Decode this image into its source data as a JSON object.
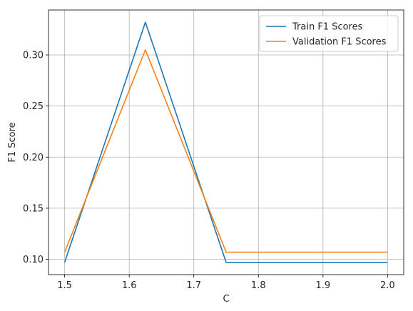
{
  "chart_data": {
    "type": "line",
    "title": "",
    "xlabel": "C",
    "ylabel": "F1 Score",
    "xlim": [
      1.475,
      2.025
    ],
    "ylim": [
      0.085,
      0.344
    ],
    "xticks": [
      1.5,
      1.6,
      1.7,
      1.8,
      1.9,
      2.0
    ],
    "xtick_labels": [
      "1.5",
      "1.6",
      "1.7",
      "1.8",
      "1.9",
      "2.0"
    ],
    "yticks": [
      0.1,
      0.15,
      0.2,
      0.25,
      0.3
    ],
    "ytick_labels": [
      "0.10",
      "0.15",
      "0.20",
      "0.25",
      "0.30"
    ],
    "grid": true,
    "legend_position": "top-right",
    "series": [
      {
        "name": "Train F1 Scores",
        "color": "#1f77b4",
        "x": [
          1.5,
          1.625,
          1.75,
          1.875,
          2.0
        ],
        "y": [
          0.097,
          0.332,
          0.097,
          0.097,
          0.097
        ]
      },
      {
        "name": "Validation F1 Scores",
        "color": "#ff7f0e",
        "x": [
          1.5,
          1.625,
          1.75,
          1.875,
          2.0
        ],
        "y": [
          0.107,
          0.305,
          0.107,
          0.107,
          0.107
        ]
      }
    ]
  }
}
